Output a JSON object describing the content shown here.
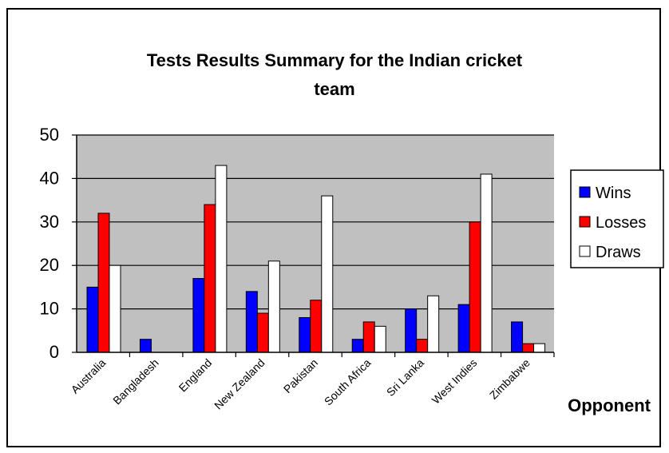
{
  "chart_data": {
    "type": "bar",
    "title_line1": "Tests Results Summary for the Indian cricket",
    "title_line2": "team",
    "xlabel": "Opponent",
    "ylabel": "",
    "ylim": [
      0,
      50
    ],
    "yticks": [
      0,
      10,
      20,
      30,
      40,
      50
    ],
    "grid": true,
    "legend_position": "right",
    "categories": [
      "Australia",
      "Bangladesh",
      "England",
      "New Zealand",
      "Pakistan",
      "South Africa",
      "Sri Lanka",
      "West Indies",
      "Zimbabwe"
    ],
    "series": [
      {
        "name": "Wins",
        "color": "#0000ff",
        "values": [
          15,
          3,
          17,
          14,
          8,
          3,
          10,
          11,
          7
        ]
      },
      {
        "name": "Losses",
        "color": "#ff0000",
        "values": [
          32,
          0,
          34,
          9,
          12,
          7,
          3,
          30,
          2
        ]
      },
      {
        "name": "Draws",
        "color": "#ffffff",
        "values": [
          20,
          0,
          43,
          21,
          36,
          6,
          13,
          41,
          2
        ]
      }
    ],
    "plot_background": "#c0c0c0"
  }
}
